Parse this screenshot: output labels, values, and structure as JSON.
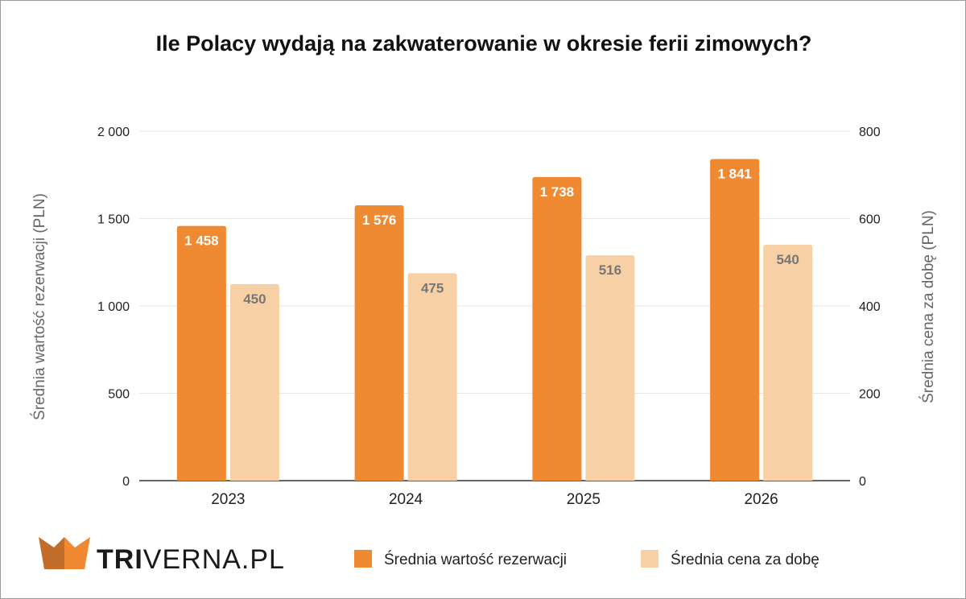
{
  "chart_data": {
    "type": "bar",
    "title": "Ile Polacy wydają na zakwaterowanie w okresie ferii zimowych?",
    "categories": [
      "2023",
      "2024",
      "2025",
      "2026"
    ],
    "series": [
      {
        "name": "Średnia wartość rezerwacji",
        "axis": "left",
        "color": "#EF8A33",
        "label_color": "#ffffff",
        "values": [
          1458,
          1576,
          1738,
          1841
        ],
        "labels": [
          "1 458",
          "1 576",
          "1 738",
          "1 841"
        ]
      },
      {
        "name": "Średnia cena za dobę",
        "axis": "right",
        "color": "#F7D1A5",
        "label_color": "#777777",
        "values": [
          450,
          475,
          516,
          540
        ],
        "labels": [
          "450",
          "475",
          "516",
          "540"
        ]
      }
    ],
    "ylabel": "Średnia wartość rezerwacji (PLN)",
    "y2label": "Średnia cena za dobę (PLN)",
    "ylim": [
      0,
      2000
    ],
    "y2lim": [
      0,
      800
    ],
    "yticks": [
      {
        "v": 0,
        "t": "0"
      },
      {
        "v": 500,
        "t": "500"
      },
      {
        "v": 1000,
        "t": "1 000"
      },
      {
        "v": 1500,
        "t": "1 500"
      },
      {
        "v": 2000,
        "t": "2 000"
      }
    ],
    "y2ticks": [
      {
        "v": 0,
        "t": "0"
      },
      {
        "v": 200,
        "t": "200"
      },
      {
        "v": 400,
        "t": "400"
      },
      {
        "v": 600,
        "t": "600"
      },
      {
        "v": 800,
        "t": "800"
      }
    ],
    "grid": true,
    "legend_position": "bottom-right"
  },
  "logo": {
    "bold": "TRI",
    "rest": "VERNA.PL"
  }
}
